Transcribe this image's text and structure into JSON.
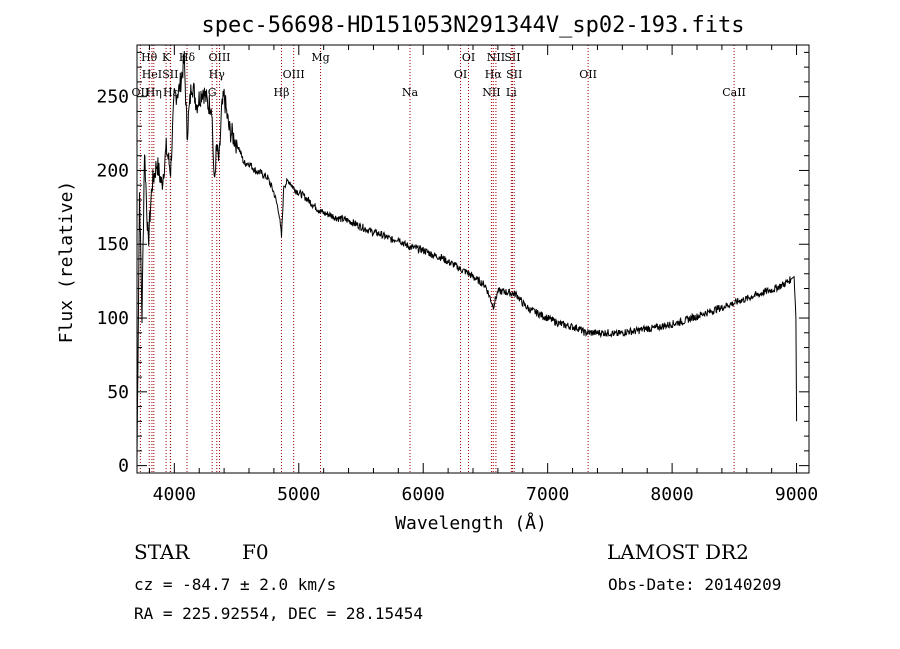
{
  "chart_data": {
    "type": "line",
    "title": "spec-56698-HD151053N291344V_sp02-193.fits",
    "xlabel": "Wavelength (Å)",
    "ylabel": "Flux (relative)",
    "xlim": [
      3700,
      9100
    ],
    "ylim": [
      -5,
      285
    ],
    "x_ticks": [
      4000,
      5000,
      6000,
      7000,
      8000,
      9000
    ],
    "y_ticks": [
      0,
      50,
      100,
      150,
      200,
      250
    ],
    "grid": false,
    "series": [
      {
        "x": [
          3700,
          3720,
          3740,
          3760,
          3790,
          3820,
          3860,
          3900,
          3935,
          3970,
          4000,
          4040,
          4080,
          4102,
          4140,
          4180,
          4230,
          4270,
          4300,
          4320,
          4340,
          4360,
          4380,
          4400,
          4440,
          4480,
          4520,
          4560,
          4600,
          4650,
          4700,
          4750,
          4800,
          4840,
          4861,
          4880,
          4920,
          4960,
          5000,
          5050,
          5100,
          5150,
          5200,
          5250,
          5300,
          5350,
          5400,
          5450,
          5500,
          5550,
          5600,
          5650,
          5700,
          5750,
          5800,
          5850,
          5900,
          5950,
          6000,
          6050,
          6100,
          6150,
          6200,
          6250,
          6300,
          6350,
          6400,
          6450,
          6500,
          6563,
          6600,
          6650,
          6700,
          6750,
          6800,
          6850,
          6900,
          6950,
          7000,
          7050,
          7100,
          7150,
          7200,
          7250,
          7300,
          7350,
          7400,
          7450,
          7500,
          7550,
          7600,
          7650,
          7700,
          7750,
          7800,
          7850,
          7900,
          7950,
          8000,
          8050,
          8100,
          8150,
          8200,
          8250,
          8300,
          8350,
          8400,
          8450,
          8500,
          8550,
          8600,
          8650,
          8700,
          8750,
          8800,
          8850,
          8900,
          8950,
          8980,
          8995,
          9000
        ],
        "y": [
          5,
          185,
          100,
          215,
          150,
          190,
          205,
          190,
          215,
          200,
          250,
          255,
          275,
          225,
          260,
          245,
          255,
          245,
          245,
          190,
          215,
          205,
          240,
          250,
          228,
          222,
          215,
          205,
          205,
          200,
          198,
          195,
          185,
          172,
          155,
          190,
          193,
          188,
          185,
          182,
          178,
          174,
          171,
          170,
          168,
          167,
          166,
          164,
          162,
          160,
          158,
          157,
          155,
          153,
          154,
          150,
          148,
          147,
          146,
          144,
          142,
          141,
          138,
          136,
          133,
          131,
          128,
          125,
          122,
          108,
          118,
          118,
          117,
          116,
          110,
          106,
          104,
          102,
          100,
          98,
          96,
          95,
          94,
          93,
          90,
          90,
          90,
          90,
          90,
          89,
          90,
          91,
          91,
          92,
          93,
          93,
          94,
          95,
          96,
          97,
          98,
          100,
          101,
          103,
          104,
          106,
          107,
          109,
          110,
          112,
          113,
          115,
          116,
          118,
          119,
          121,
          123,
          126,
          128,
          100,
          30
        ]
      }
    ],
    "line_markers": [
      {
        "label": "OII",
        "x": 3727,
        "row": 3
      },
      {
        "label": "Hθ",
        "x": 3798,
        "row": 1
      },
      {
        "label": "HeI",
        "x": 3820,
        "row": 2
      },
      {
        "label": "Hη",
        "x": 3835,
        "row": 3
      },
      {
        "label": "K",
        "x": 3934,
        "row": 1
      },
      {
        "label": "SII",
        "x": 3968,
        "row": 2
      },
      {
        "label": "Hε",
        "x": 3970,
        "row": 3
      },
      {
        "label": "Hδ",
        "x": 4102,
        "row": 1
      },
      {
        "label": "G",
        "x": 4304,
        "row": 3
      },
      {
        "label": "OIII",
        "x": 4363,
        "row": 1
      },
      {
        "label": "Hγ",
        "x": 4341,
        "row": 2
      },
      {
        "label": "Hβ",
        "x": 4861,
        "row": 3
      },
      {
        "label": "OIII",
        "x": 4959,
        "row": 2
      },
      {
        "label": "Mg",
        "x": 5175,
        "row": 1
      },
      {
        "label": "Na",
        "x": 5894,
        "row": 3
      },
      {
        "label": "OI",
        "x": 6300,
        "row": 2
      },
      {
        "label": "OI",
        "x": 6364,
        "row": 1
      },
      {
        "label": "NII",
        "x": 6548,
        "row": 3
      },
      {
        "label": "NII",
        "x": 6584,
        "row": 1
      },
      {
        "label": "Hα",
        "x": 6563,
        "row": 2
      },
      {
        "label": "SII",
        "x": 6717,
        "row": 1
      },
      {
        "label": "SII",
        "x": 6731,
        "row": 2
      },
      {
        "label": "Li",
        "x": 6708,
        "row": 3
      },
      {
        "label": "OII",
        "x": 7325,
        "row": 2
      },
      {
        "label": "CaII",
        "x": 8498,
        "row": 3
      }
    ]
  },
  "info": {
    "object_type": "STAR",
    "subclass": "F0",
    "survey": "LAMOST DR2",
    "cz": "cz = -84.7 ± 2.0 km/s",
    "obs_date": "Obs-Date: 20140209",
    "coords": "RA = 225.92554, DEC =  28.15454"
  }
}
